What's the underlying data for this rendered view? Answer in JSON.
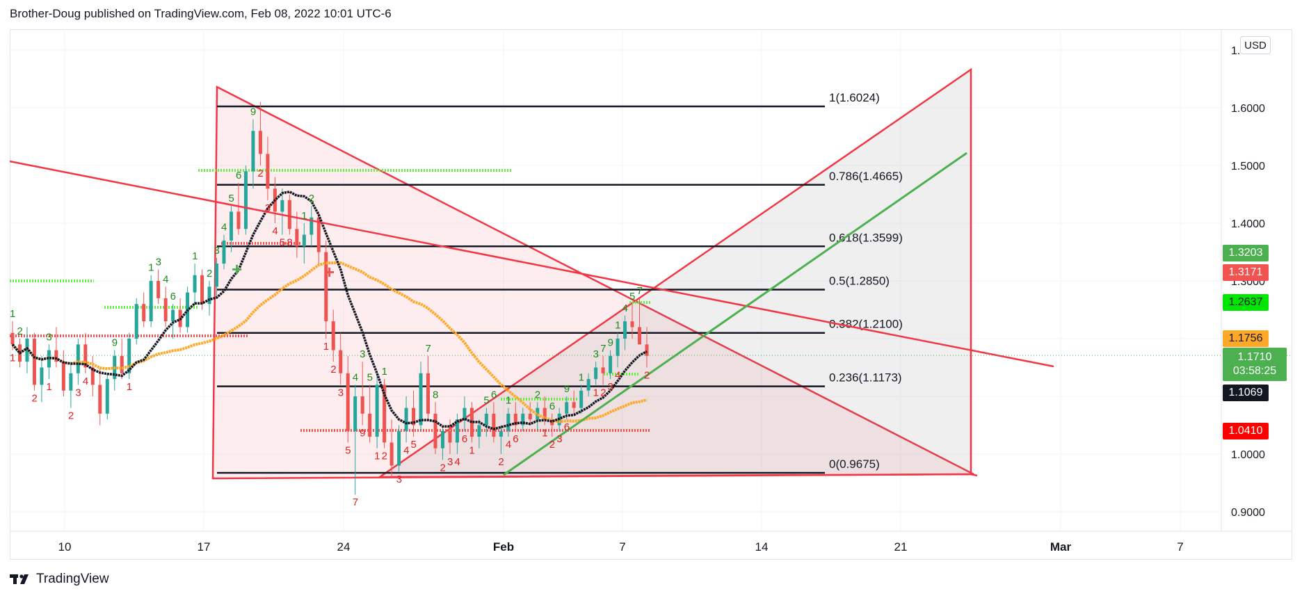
{
  "header": {
    "published": "Brother-Doug published on TradingView.com, Feb 08, 2022 10:01 UTC-6"
  },
  "footer": {
    "brand": "TradingView",
    "logo_icon": "tradingview-logo-icon"
  },
  "currency_button": "USD",
  "price_tags": {
    "tag1": {
      "value": "1.3203",
      "color": "#4caf50"
    },
    "tag2": {
      "value": "1.3171",
      "color": "#f05350"
    },
    "tag3": {
      "value": "1.2637",
      "color": "#00e600"
    },
    "tag4": {
      "value": "1.1756",
      "color": "#ffa726"
    },
    "last": {
      "value": "1.1710",
      "countdown": "03:58:25",
      "color": "#4caf50"
    },
    "tag6": {
      "value": "1.1069",
      "color": "#131722"
    },
    "tag7": {
      "value": "1.0410",
      "color": "#ff0000"
    }
  },
  "chart_data": {
    "type": "candlestick",
    "ylim": [
      0.86,
      1.74
    ],
    "y_ticks": [
      "1.7000",
      "1.6000",
      "1.5000",
      "1.4000",
      "1.3000",
      "1.2000",
      "1.1000",
      "1.0000",
      "0.9000"
    ],
    "x_ticks": [
      "10",
      "17",
      "24",
      "Feb",
      "7",
      "14",
      "21",
      "Mar",
      "7"
    ],
    "fib_levels": [
      {
        "label": "1(1.6024)",
        "value": 1.6024
      },
      {
        "label": "0.786(1.4665)",
        "value": 1.4665
      },
      {
        "label": "0.618(1.3599)",
        "value": 1.3599
      },
      {
        "label": "0.5(1.2850)",
        "value": 1.285
      },
      {
        "label": "0.382(1.2100)",
        "value": 1.21
      },
      {
        "label": "0.236(1.1173)",
        "value": 1.1173
      },
      {
        "label": "0(0.9675)",
        "value": 0.9675
      }
    ],
    "last_price": 1.171,
    "candles": [
      [
        1.21,
        1.23,
        1.18,
        1.19
      ],
      [
        1.19,
        1.2,
        1.15,
        1.16
      ],
      [
        1.16,
        1.22,
        1.14,
        1.2
      ],
      [
        1.2,
        1.21,
        1.11,
        1.12
      ],
      [
        1.12,
        1.17,
        1.09,
        1.15
      ],
      [
        1.15,
        1.19,
        1.13,
        1.18
      ],
      [
        1.18,
        1.22,
        1.15,
        1.16
      ],
      [
        1.16,
        1.18,
        1.1,
        1.11
      ],
      [
        1.11,
        1.16,
        1.08,
        1.14
      ],
      [
        1.14,
        1.2,
        1.12,
        1.19
      ],
      [
        1.19,
        1.21,
        1.14,
        1.15
      ],
      [
        1.15,
        1.17,
        1.1,
        1.12
      ],
      [
        1.12,
        1.15,
        1.05,
        1.07
      ],
      [
        1.07,
        1.14,
        1.06,
        1.13
      ],
      [
        1.13,
        1.18,
        1.11,
        1.17
      ],
      [
        1.17,
        1.2,
        1.13,
        1.14
      ],
      [
        1.14,
        1.21,
        1.13,
        1.2
      ],
      [
        1.2,
        1.27,
        1.19,
        1.26
      ],
      [
        1.26,
        1.28,
        1.22,
        1.23
      ],
      [
        1.23,
        1.31,
        1.22,
        1.3
      ],
      [
        1.3,
        1.32,
        1.26,
        1.27
      ],
      [
        1.27,
        1.29,
        1.22,
        1.23
      ],
      [
        1.23,
        1.26,
        1.2,
        1.25
      ],
      [
        1.25,
        1.27,
        1.21,
        1.22
      ],
      [
        1.22,
        1.29,
        1.21,
        1.28
      ],
      [
        1.28,
        1.33,
        1.26,
        1.31
      ],
      [
        1.31,
        1.32,
        1.25,
        1.26
      ],
      [
        1.26,
        1.3,
        1.24,
        1.29
      ],
      [
        1.29,
        1.34,
        1.27,
        1.33
      ],
      [
        1.33,
        1.38,
        1.32,
        1.37
      ],
      [
        1.37,
        1.43,
        1.35,
        1.42
      ],
      [
        1.42,
        1.47,
        1.38,
        1.39
      ],
      [
        1.39,
        1.5,
        1.38,
        1.49
      ],
      [
        1.49,
        1.58,
        1.46,
        1.56
      ],
      [
        1.56,
        1.61,
        1.5,
        1.52
      ],
      [
        1.52,
        1.55,
        1.44,
        1.46
      ],
      [
        1.46,
        1.48,
        1.4,
        1.42
      ],
      [
        1.42,
        1.46,
        1.38,
        1.44
      ],
      [
        1.44,
        1.45,
        1.38,
        1.39
      ],
      [
        1.39,
        1.42,
        1.34,
        1.36
      ],
      [
        1.36,
        1.4,
        1.33,
        1.38
      ],
      [
        1.38,
        1.43,
        1.36,
        1.41
      ],
      [
        1.41,
        1.42,
        1.33,
        1.35
      ],
      [
        1.35,
        1.37,
        1.2,
        1.23
      ],
      [
        1.23,
        1.25,
        1.16,
        1.18
      ],
      [
        1.18,
        1.21,
        1.12,
        1.14
      ],
      [
        1.14,
        1.17,
        1.02,
        1.04
      ],
      [
        1.04,
        1.12,
        0.93,
        1.1
      ],
      [
        1.1,
        1.16,
        1.05,
        1.07
      ],
      [
        1.07,
        1.12,
        1.02,
        1.03
      ],
      [
        1.03,
        1.14,
        1.01,
        1.12
      ],
      [
        1.12,
        1.13,
        1.01,
        1.02
      ],
      [
        1.02,
        1.06,
        0.96,
        0.98
      ],
      [
        0.98,
        1.05,
        0.97,
        1.04
      ],
      [
        1.04,
        1.1,
        1.02,
        1.08
      ],
      [
        1.08,
        1.11,
        1.03,
        1.05
      ],
      [
        1.05,
        1.16,
        1.04,
        1.14
      ],
      [
        1.14,
        1.17,
        1.06,
        1.07
      ],
      [
        1.07,
        1.09,
        1.0,
        1.01
      ],
      [
        1.01,
        1.05,
        0.99,
        1.04
      ],
      [
        1.04,
        1.06,
        1.0,
        1.02
      ],
      [
        1.02,
        1.07,
        1.0,
        1.06
      ],
      [
        1.06,
        1.1,
        1.04,
        1.08
      ],
      [
        1.08,
        1.09,
        1.02,
        1.03
      ],
      [
        1.03,
        1.06,
        1.01,
        1.05
      ],
      [
        1.05,
        1.08,
        1.03,
        1.07
      ],
      [
        1.07,
        1.09,
        1.02,
        1.03
      ],
      [
        1.03,
        1.05,
        1.0,
        1.04
      ],
      [
        1.04,
        1.08,
        1.03,
        1.07
      ],
      [
        1.07,
        1.09,
        1.04,
        1.05
      ],
      [
        1.05,
        1.08,
        1.04,
        1.07
      ],
      [
        1.07,
        1.09,
        1.05,
        1.06
      ],
      [
        1.06,
        1.09,
        1.04,
        1.08
      ],
      [
        1.08,
        1.1,
        1.05,
        1.06
      ],
      [
        1.06,
        1.07,
        1.03,
        1.05
      ],
      [
        1.05,
        1.08,
        1.04,
        1.07
      ],
      [
        1.07,
        1.1,
        1.06,
        1.09
      ],
      [
        1.09,
        1.11,
        1.07,
        1.08
      ],
      [
        1.08,
        1.12,
        1.07,
        1.11
      ],
      [
        1.11,
        1.14,
        1.1,
        1.13
      ],
      [
        1.13,
        1.16,
        1.12,
        1.15
      ],
      [
        1.15,
        1.17,
        1.12,
        1.14
      ],
      [
        1.14,
        1.18,
        1.13,
        1.17
      ],
      [
        1.17,
        1.21,
        1.15,
        1.2
      ],
      [
        1.2,
        1.24,
        1.18,
        1.23
      ],
      [
        1.23,
        1.26,
        1.2,
        1.22
      ],
      [
        1.22,
        1.27,
        1.19,
        1.19
      ],
      [
        1.19,
        1.22,
        1.15,
        1.17
      ]
    ],
    "countdown_labels_green": [
      {
        "t": "1",
        "d": 0
      },
      {
        "t": "2",
        "d": 1
      },
      {
        "t": "3",
        "d": 5
      },
      {
        "t": "9",
        "d": 14
      },
      {
        "t": "1",
        "d": 19
      },
      {
        "t": "3",
        "d": 20
      },
      {
        "t": "4",
        "d": 21
      },
      {
        "t": "6",
        "d": 22
      },
      {
        "t": "1",
        "d": 25
      },
      {
        "t": "2",
        "d": 27
      },
      {
        "t": "3",
        "d": 28
      },
      {
        "t": "4",
        "d": 29
      },
      {
        "t": "5",
        "d": 30
      },
      {
        "t": "6",
        "d": 31
      },
      {
        "t": "9",
        "d": 33
      },
      {
        "t": "1",
        "d": 40
      },
      {
        "t": "2",
        "d": 41
      },
      {
        "t": "4",
        "d": 47
      },
      {
        "t": "3",
        "d": 48
      },
      {
        "t": "5",
        "d": 49
      },
      {
        "t": "1",
        "d": 51
      },
      {
        "t": "7",
        "d": 57
      },
      {
        "t": "8",
        "d": 58
      },
      {
        "t": "5",
        "d": 65
      },
      {
        "t": "6",
        "d": 66
      },
      {
        "t": "1",
        "d": 68
      },
      {
        "t": "2",
        "d": 72
      },
      {
        "t": "6",
        "d": 74
      },
      {
        "t": "9",
        "d": 76
      },
      {
        "t": "1",
        "d": 78
      },
      {
        "t": "3",
        "d": 80
      },
      {
        "t": "7",
        "d": 81
      },
      {
        "t": "9",
        "d": 82
      },
      {
        "t": "1",
        "d": 83
      },
      {
        "t": "4",
        "d": 84
      },
      {
        "t": "5",
        "d": 85
      },
      {
        "t": "7",
        "d": 86
      }
    ],
    "countdown_labels_red": [
      {
        "t": "1",
        "d": 0
      },
      {
        "t": "2",
        "d": 3
      },
      {
        "t": "1",
        "d": 5
      },
      {
        "t": "3",
        "d": 9
      },
      {
        "t": "4",
        "d": 10
      },
      {
        "t": "2",
        "d": 8
      },
      {
        "t": "1",
        "d": 16
      },
      {
        "t": "2",
        "d": 34
      },
      {
        "t": "3",
        "d": 35
      },
      {
        "t": "4",
        "d": 36
      },
      {
        "t": "5",
        "d": 37
      },
      {
        "t": "8",
        "d": 38
      },
      {
        "t": "1",
        "d": 43
      },
      {
        "t": "2",
        "d": 44
      },
      {
        "t": "3",
        "d": 45
      },
      {
        "t": "5",
        "d": 46
      },
      {
        "t": "7",
        "d": 47
      },
      {
        "t": "9",
        "d": 48
      },
      {
        "t": "1",
        "d": 50
      },
      {
        "t": "2",
        "d": 51
      },
      {
        "t": "3",
        "d": 53
      },
      {
        "t": "4",
        "d": 54
      },
      {
        "t": "5",
        "d": 55
      },
      {
        "t": "2",
        "d": 59
      },
      {
        "t": "3",
        "d": 60
      },
      {
        "t": "4",
        "d": 61
      },
      {
        "t": "6",
        "d": 62
      },
      {
        "t": "1",
        "d": 63
      },
      {
        "t": "2",
        "d": 67
      },
      {
        "t": "4",
        "d": 68
      },
      {
        "t": "6",
        "d": 69
      },
      {
        "t": "1",
        "d": 73
      },
      {
        "t": "2",
        "d": 74
      },
      {
        "t": "3",
        "d": 75
      },
      {
        "t": "6",
        "d": 76
      },
      {
        "t": "1",
        "d": 80
      },
      {
        "t": "2",
        "d": 81
      },
      {
        "t": "3",
        "d": 82
      },
      {
        "t": "4",
        "d": 83
      },
      {
        "t": "2",
        "d": 87
      }
    ]
  }
}
